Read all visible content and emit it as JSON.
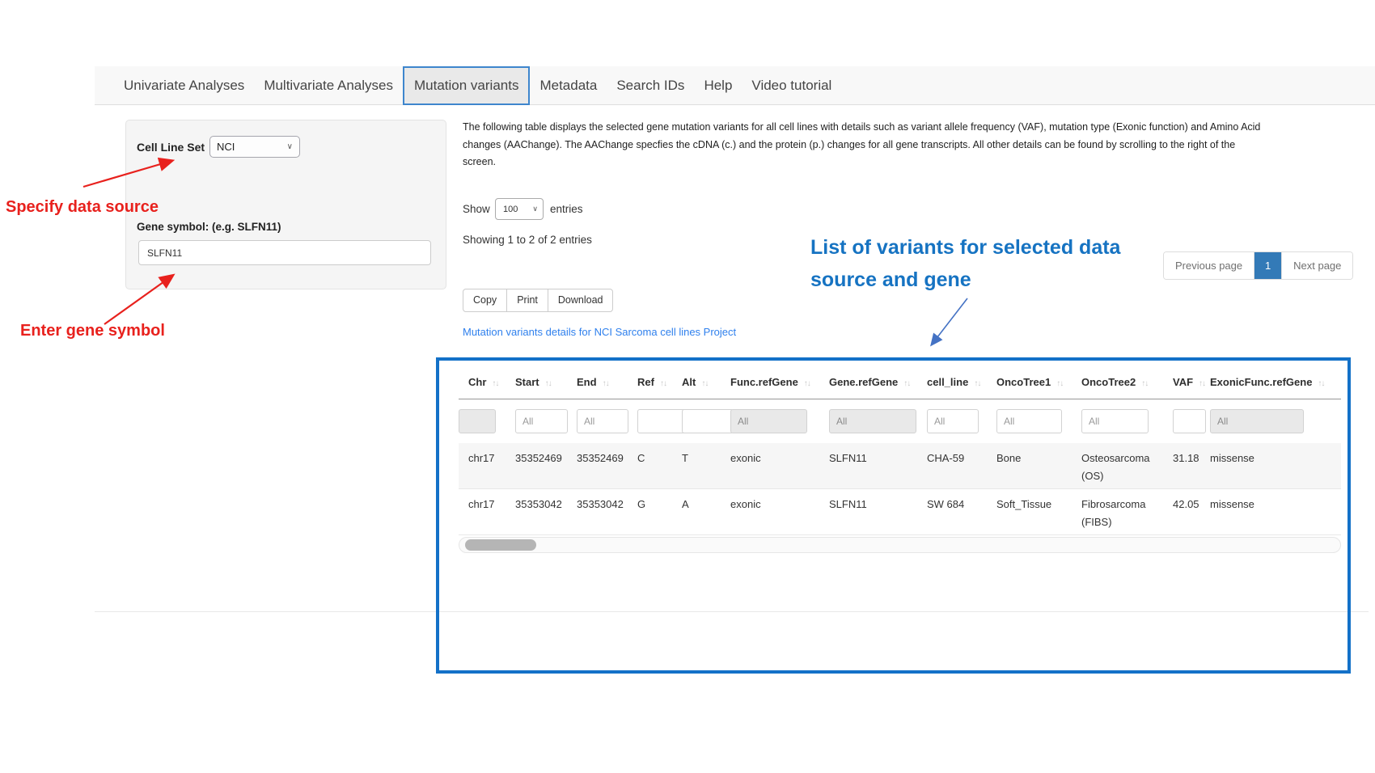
{
  "navbar": {
    "tabs": [
      {
        "label": "Univariate Analyses",
        "active": false
      },
      {
        "label": "Multivariate Analyses",
        "active": false
      },
      {
        "label": "Mutation variants",
        "active": true
      },
      {
        "label": "Metadata",
        "active": false
      },
      {
        "label": "Search IDs",
        "active": false
      },
      {
        "label": "Help",
        "active": false
      },
      {
        "label": "Video tutorial",
        "active": false
      }
    ]
  },
  "sidebar": {
    "cell_line_set_label": "Cell Line Set",
    "cell_line_set_value": "NCI",
    "gene_symbol_label": "Gene symbol: (e.g. SLFN11)",
    "gene_symbol_value": "SLFN11"
  },
  "annotations": {
    "specify_data_source": "Specify data source",
    "enter_gene_symbol": "Enter gene symbol",
    "variants_heading": "List of variants for selected data source and gene"
  },
  "main": {
    "description": "The following table displays the selected gene mutation variants for all cell lines with details such as variant allele frequency (VAF), mutation type (Exonic function) and Amino Acid changes (AAChange). The AAChange specfies the cDNA (c.) and the protein (p.) changes for all gene transcripts. All other details can be found by scrolling to the right of the screen.",
    "show_label": "Show",
    "show_value": "100",
    "entries_label": "entries",
    "showing_text": "Showing 1 to 2 of 2 entries",
    "buttons": [
      "Copy",
      "Print",
      "Download"
    ],
    "table_link": "Mutation variants details for NCI Sarcoma cell lines Project",
    "pagination": {
      "previous": "Previous page",
      "current": "1",
      "next": "Next page"
    }
  },
  "table": {
    "columns": [
      {
        "label": "Chr",
        "filter": "select",
        "filter_text": ""
      },
      {
        "label": "Start",
        "filter": "input",
        "filter_text": "All"
      },
      {
        "label": "End",
        "filter": "input",
        "filter_text": "All"
      },
      {
        "label": "Ref",
        "filter": "input",
        "filter_text": ""
      },
      {
        "label": "Alt",
        "filter": "input",
        "filter_text": ""
      },
      {
        "label": "Func.refGene",
        "filter": "select",
        "filter_text": "All"
      },
      {
        "label": "Gene.refGene",
        "filter": "select",
        "filter_text": "All"
      },
      {
        "label": "cell_line",
        "filter": "input",
        "filter_text": "All"
      },
      {
        "label": "OncoTree1",
        "filter": "input",
        "filter_text": "All"
      },
      {
        "label": "OncoTree2",
        "filter": "input",
        "filter_text": "All"
      },
      {
        "label": "VAF",
        "filter": "input",
        "filter_text": ""
      },
      {
        "label": "ExonicFunc.refGene",
        "filter": "select",
        "filter_text": "All"
      }
    ],
    "rows": [
      [
        "chr17",
        "35352469",
        "35352469",
        "C",
        "T",
        "exonic",
        "SLFN11",
        "CHA-59",
        "Bone",
        "Osteosarcoma (OS)",
        "31.18",
        "missense"
      ],
      [
        "chr17",
        "35353042",
        "35353042",
        "G",
        "A",
        "exonic",
        "SLFN11",
        "SW 684",
        "Soft_Tissue",
        "Fibrosarcoma (FIBS)",
        "42.05",
        "missense"
      ]
    ]
  },
  "icons": {
    "chevron_down": "∨",
    "sort_arrows": "↑↓"
  },
  "colors": {
    "accent_red": "#e8211d",
    "accent_blue": "#1673c2",
    "box_border": "#1371c8",
    "link": "#2f80ed",
    "pagination_active": "#337ab7",
    "tab_active_border": "#3e86cd"
  }
}
